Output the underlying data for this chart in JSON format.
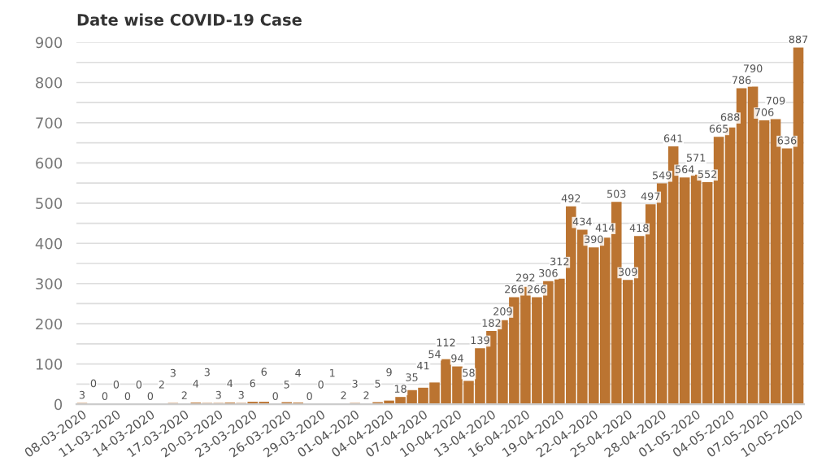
{
  "chart_data": {
    "type": "bar",
    "title": "Date wise COVID-19 Case",
    "categories": [
      "08-03-2020",
      null,
      null,
      "11-03-2020",
      null,
      null,
      "14-03-2020",
      null,
      null,
      "17-03-2020",
      null,
      null,
      "20-03-2020",
      null,
      null,
      "23-03-2020",
      null,
      null,
      "26-03-2020",
      null,
      null,
      "29-03-2020",
      null,
      null,
      "01-04-2020",
      null,
      null,
      "04-04-2020",
      null,
      null,
      "07-04-2020",
      null,
      null,
      "10-04-2020",
      null,
      null,
      "13-04-2020",
      null,
      null,
      "16-04-2020",
      null,
      null,
      "19-04-2020",
      null,
      null,
      "22-04-2020",
      null,
      null,
      "25-04-2020",
      null,
      null,
      "28-04-2020",
      null,
      null,
      "01-05-2020",
      null,
      null,
      "04-05-2020",
      null,
      null,
      "07-05-2020",
      null,
      null,
      "10-05-2020"
    ],
    "values": [
      3,
      0,
      0,
      0,
      0,
      0,
      0,
      2,
      3,
      2,
      4,
      3,
      3,
      4,
      3,
      6,
      6,
      0,
      5,
      4,
      0,
      0,
      1,
      2,
      3,
      2,
      5,
      9,
      18,
      35,
      41,
      54,
      112,
      94,
      58,
      139,
      182,
      209,
      266,
      292,
      266,
      306,
      312,
      492,
      434,
      390,
      414,
      503,
      309,
      418,
      497,
      549,
      641,
      564,
      571,
      552,
      665,
      688,
      786,
      790,
      706,
      709,
      636,
      887
    ],
    "color": "#bb7431",
    "ylim": [
      0,
      900
    ],
    "yticks": [
      0,
      {
        "value": 50,
        "label": null
      },
      100,
      {
        "value": 150,
        "label": null
      },
      200,
      {
        "value": 250,
        "label": null
      },
      300,
      {
        "value": 350,
        "label": null
      },
      400,
      {
        "value": 450,
        "label": null
      },
      500,
      {
        "value": 550,
        "label": null
      },
      600,
      {
        "value": 650,
        "label": null
      },
      700,
      {
        "value": 750,
        "label": null
      },
      800,
      {
        "value": 850,
        "label": null
      },
      900
    ],
    "grid": "y",
    "data_labels": true
  }
}
